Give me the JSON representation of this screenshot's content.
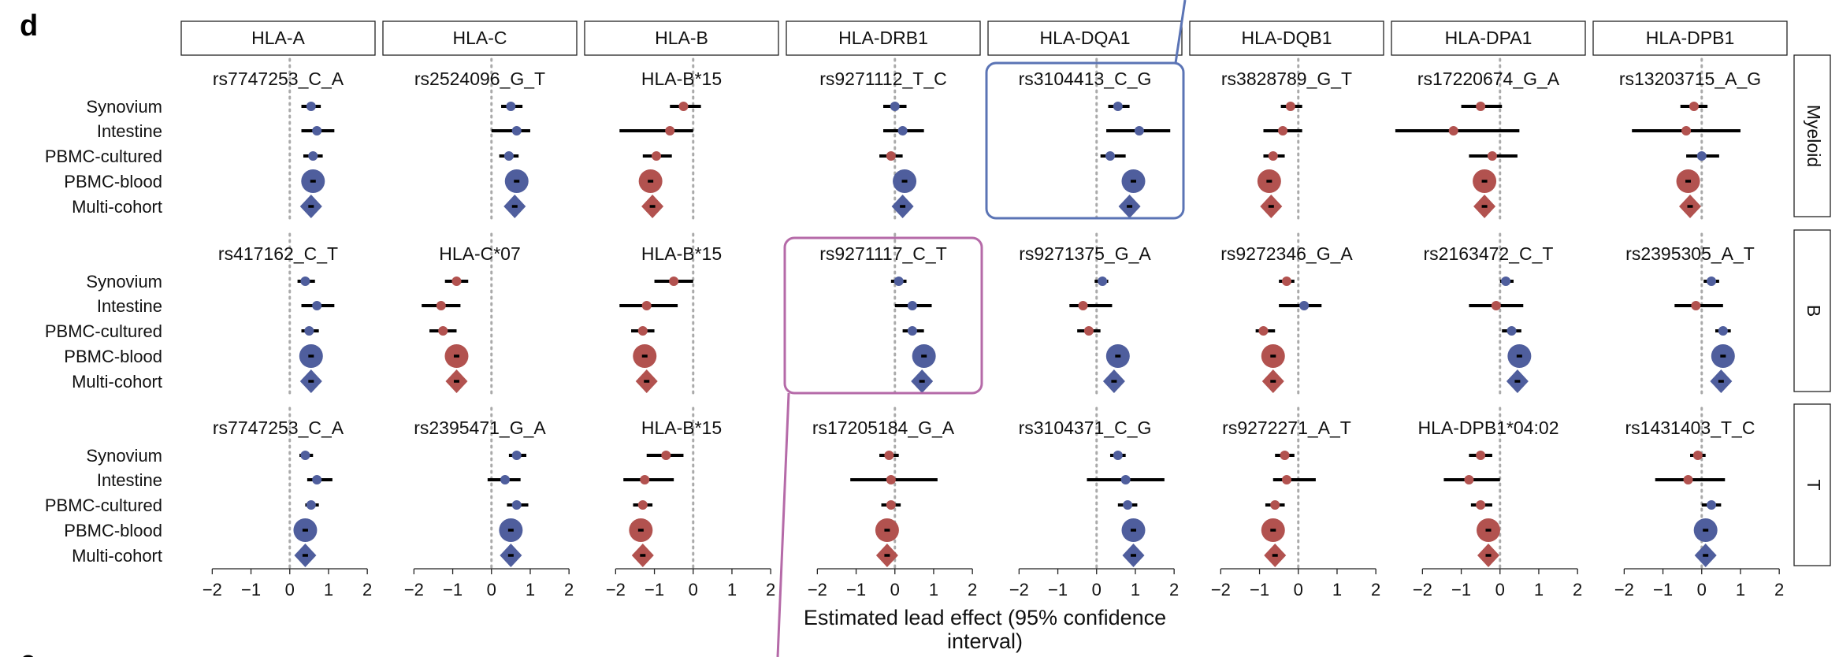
{
  "panel_letter": "d",
  "panel_letter_next": "e",
  "chart_data": {
    "type": "forest",
    "xlabel": "Estimated lead effect (95% confidence interval)",
    "xlim": [
      -2.8,
      2.2
    ],
    "xticks": [
      -2,
      -1,
      0,
      1,
      2
    ],
    "genes": [
      "HLA-A",
      "HLA-C",
      "HLA-B",
      "HLA-DRB1",
      "HLA-DQA1",
      "HLA-DQB1",
      "HLA-DPA1",
      "HLA-DPB1"
    ],
    "cell_types": [
      "Myeloid",
      "B",
      "T"
    ],
    "cohorts": [
      "Synovium",
      "Intestine",
      "PBMC-cultured",
      "PBMC-blood",
      "Multi-cohort"
    ],
    "colors": {
      "positive": "#4f5e9d",
      "negative": "#b2524f",
      "highlight_blue": "#5b74b5",
      "highlight_pink": "#b56aa8",
      "ref_line": "#aaaaaa"
    },
    "highlights": [
      {
        "cell_type": "Myeloid",
        "gene": "HLA-DQA1",
        "color": "highlight_blue"
      },
      {
        "cell_type": "B",
        "gene": "HLA-DRB1",
        "color": "highlight_pink"
      }
    ],
    "panels": [
      {
        "cell_type": "Myeloid",
        "gene": "HLA-A",
        "variant": "rs7747253_C_A",
        "est": [
          0.55,
          0.7,
          0.6,
          0.6,
          0.55
        ],
        "lo": [
          0.3,
          0.3,
          0.35,
          null,
          null
        ],
        "hi": [
          0.8,
          1.15,
          0.85,
          null,
          null
        ]
      },
      {
        "cell_type": "Myeloid",
        "gene": "HLA-C",
        "variant": "rs2524096_G_T",
        "est": [
          0.5,
          0.65,
          0.45,
          0.65,
          0.6
        ],
        "lo": [
          0.25,
          0.0,
          0.2,
          null,
          null
        ],
        "hi": [
          0.8,
          1.0,
          0.7,
          null,
          null
        ]
      },
      {
        "cell_type": "Myeloid",
        "gene": "HLA-B",
        "variant": "HLA-B*15",
        "est": [
          -0.25,
          -0.6,
          -0.95,
          -1.1,
          -1.05
        ],
        "lo": [
          -0.6,
          -1.9,
          -1.3,
          null,
          null
        ],
        "hi": [
          0.2,
          0.0,
          -0.55,
          null,
          null
        ]
      },
      {
        "cell_type": "Myeloid",
        "gene": "HLA-DRB1",
        "variant": "rs9271112_T_C",
        "est": [
          0.0,
          0.2,
          -0.1,
          0.25,
          0.2
        ],
        "lo": [
          -0.3,
          -0.3,
          -0.4,
          null,
          null
        ],
        "hi": [
          0.3,
          0.75,
          0.2,
          null,
          null
        ]
      },
      {
        "cell_type": "Myeloid",
        "gene": "HLA-DQA1",
        "variant": "rs3104413_C_G",
        "est": [
          0.55,
          1.1,
          0.35,
          0.95,
          0.85
        ],
        "lo": [
          0.3,
          0.25,
          0.1,
          null,
          null
        ],
        "hi": [
          0.85,
          1.9,
          0.75,
          null,
          null
        ]
      },
      {
        "cell_type": "Myeloid",
        "gene": "HLA-DQB1",
        "variant": "rs3828789_G_T",
        "est": [
          -0.2,
          -0.4,
          -0.65,
          -0.75,
          -0.7
        ],
        "lo": [
          -0.45,
          -0.9,
          -0.9,
          null,
          null
        ],
        "hi": [
          0.1,
          0.1,
          -0.35,
          null,
          null
        ]
      },
      {
        "cell_type": "Myeloid",
        "gene": "HLA-DPA1",
        "variant": "rs17220674_G_A",
        "est": [
          -0.5,
          -1.2,
          -0.2,
          -0.4,
          -0.4
        ],
        "lo": [
          -1.0,
          -2.7,
          -0.8,
          null,
          null
        ],
        "hi": [
          0.05,
          0.5,
          0.45,
          null,
          null
        ]
      },
      {
        "cell_type": "Myeloid",
        "gene": "HLA-DPB1",
        "variant": "rs13203715_A_G",
        "est": [
          -0.2,
          -0.4,
          0.0,
          -0.35,
          -0.3
        ],
        "lo": [
          -0.55,
          -1.8,
          -0.4,
          null,
          null
        ],
        "hi": [
          0.15,
          1.0,
          0.45,
          null,
          null
        ]
      },
      {
        "cell_type": "B",
        "gene": "HLA-A",
        "variant": "rs417162_C_T",
        "est": [
          0.4,
          0.7,
          0.5,
          0.55,
          0.55
        ],
        "lo": [
          0.2,
          0.3,
          0.3,
          null,
          null
        ],
        "hi": [
          0.65,
          1.15,
          0.75,
          null,
          null
        ]
      },
      {
        "cell_type": "B",
        "gene": "HLA-C",
        "variant": "HLA-C*07",
        "est": [
          -0.9,
          -1.3,
          -1.25,
          -0.9,
          -0.9
        ],
        "lo": [
          -1.2,
          -1.8,
          -1.6,
          null,
          null
        ],
        "hi": [
          -0.6,
          -0.8,
          -0.9,
          null,
          null
        ]
      },
      {
        "cell_type": "B",
        "gene": "HLA-B",
        "variant": "HLA-B*15",
        "est": [
          -0.5,
          -1.2,
          -1.3,
          -1.25,
          -1.2
        ],
        "lo": [
          -1.0,
          -1.9,
          -1.6,
          null,
          null
        ],
        "hi": [
          0.0,
          -0.4,
          -1.0,
          null,
          null
        ]
      },
      {
        "cell_type": "B",
        "gene": "HLA-DRB1",
        "variant": "rs9271117_C_T",
        "est": [
          0.1,
          0.45,
          0.45,
          0.75,
          0.7
        ],
        "lo": [
          -0.1,
          0.0,
          0.2,
          null,
          null
        ],
        "hi": [
          0.3,
          0.95,
          0.75,
          null,
          null
        ]
      },
      {
        "cell_type": "B",
        "gene": "HLA-DQA1",
        "variant": "rs9271375_G_A",
        "est": [
          0.15,
          -0.35,
          -0.2,
          0.55,
          0.45
        ],
        "lo": [
          -0.05,
          -0.7,
          -0.5,
          null,
          null
        ],
        "hi": [
          0.3,
          0.4,
          0.1,
          null,
          null
        ]
      },
      {
        "cell_type": "B",
        "gene": "HLA-DQB1",
        "variant": "rs9272346_G_A",
        "est": [
          -0.3,
          0.15,
          -0.9,
          -0.65,
          -0.65
        ],
        "lo": [
          -0.5,
          -0.5,
          -1.1,
          null,
          null
        ],
        "hi": [
          -0.1,
          0.6,
          -0.6,
          null,
          null
        ]
      },
      {
        "cell_type": "B",
        "gene": "HLA-DPA1",
        "variant": "rs2163472_C_T",
        "est": [
          0.15,
          -0.1,
          0.3,
          0.5,
          0.45
        ],
        "lo": [
          0.0,
          -0.8,
          0.05,
          null,
          null
        ],
        "hi": [
          0.35,
          0.6,
          0.55,
          null,
          null
        ]
      },
      {
        "cell_type": "B",
        "gene": "HLA-DPB1",
        "variant": "rs2395305_A_T",
        "est": [
          0.25,
          -0.15,
          0.55,
          0.55,
          0.5
        ],
        "lo": [
          0.05,
          -0.7,
          0.35,
          null,
          null
        ],
        "hi": [
          0.45,
          0.55,
          0.75,
          null,
          null
        ]
      },
      {
        "cell_type": "T",
        "gene": "HLA-A",
        "variant": "rs7747253_C_A",
        "est": [
          0.4,
          0.7,
          0.55,
          0.4,
          0.4
        ],
        "lo": [
          0.25,
          0.45,
          0.4,
          null,
          null
        ],
        "hi": [
          0.6,
          1.1,
          0.75,
          null,
          null
        ]
      },
      {
        "cell_type": "T",
        "gene": "HLA-C",
        "variant": "rs2395471_G_A",
        "est": [
          0.65,
          0.35,
          0.65,
          0.5,
          0.5
        ],
        "lo": [
          0.45,
          -0.1,
          0.4,
          null,
          null
        ],
        "hi": [
          0.9,
          0.75,
          0.95,
          null,
          null
        ]
      },
      {
        "cell_type": "T",
        "gene": "HLA-B",
        "variant": "HLA-B*15",
        "est": [
          -0.7,
          -1.25,
          -1.3,
          -1.35,
          -1.3
        ],
        "lo": [
          -1.2,
          -1.8,
          -1.55,
          null,
          null
        ],
        "hi": [
          -0.25,
          -0.5,
          -1.05,
          null,
          null
        ]
      },
      {
        "cell_type": "T",
        "gene": "HLA-DRB1",
        "variant": "rs17205184_G_A",
        "est": [
          -0.15,
          -0.1,
          -0.1,
          -0.2,
          -0.2
        ],
        "lo": [
          -0.4,
          -1.15,
          -0.35,
          null,
          null
        ],
        "hi": [
          0.1,
          1.1,
          0.15,
          null,
          null
        ]
      },
      {
        "cell_type": "T",
        "gene": "HLA-DQA1",
        "variant": "rs3104371_C_G",
        "est": [
          0.55,
          0.75,
          0.8,
          0.95,
          0.95
        ],
        "lo": [
          0.35,
          -0.25,
          0.55,
          null,
          null
        ],
        "hi": [
          0.75,
          1.75,
          1.05,
          null,
          null
        ]
      },
      {
        "cell_type": "T",
        "gene": "HLA-DQB1",
        "variant": "rs9272271_A_T",
        "est": [
          -0.35,
          -0.3,
          -0.6,
          -0.65,
          -0.6
        ],
        "lo": [
          -0.6,
          -0.65,
          -0.85,
          null,
          null
        ],
        "hi": [
          -0.1,
          0.45,
          -0.35,
          null,
          null
        ]
      },
      {
        "cell_type": "T",
        "gene": "HLA-DPA1",
        "variant": "HLA-DPB1*04:02",
        "est": [
          -0.5,
          -0.8,
          -0.5,
          -0.3,
          -0.3
        ],
        "lo": [
          -0.8,
          -1.45,
          -0.75,
          null,
          null
        ],
        "hi": [
          -0.2,
          0.0,
          -0.2,
          null,
          null
        ]
      },
      {
        "cell_type": "T",
        "gene": "HLA-DPB1",
        "variant": "rs1431403_T_C",
        "est": [
          -0.1,
          -0.35,
          0.25,
          0.1,
          0.1
        ],
        "lo": [
          -0.3,
          -1.2,
          0.0,
          null,
          null
        ],
        "hi": [
          0.1,
          0.6,
          0.5,
          null,
          null
        ]
      }
    ]
  }
}
